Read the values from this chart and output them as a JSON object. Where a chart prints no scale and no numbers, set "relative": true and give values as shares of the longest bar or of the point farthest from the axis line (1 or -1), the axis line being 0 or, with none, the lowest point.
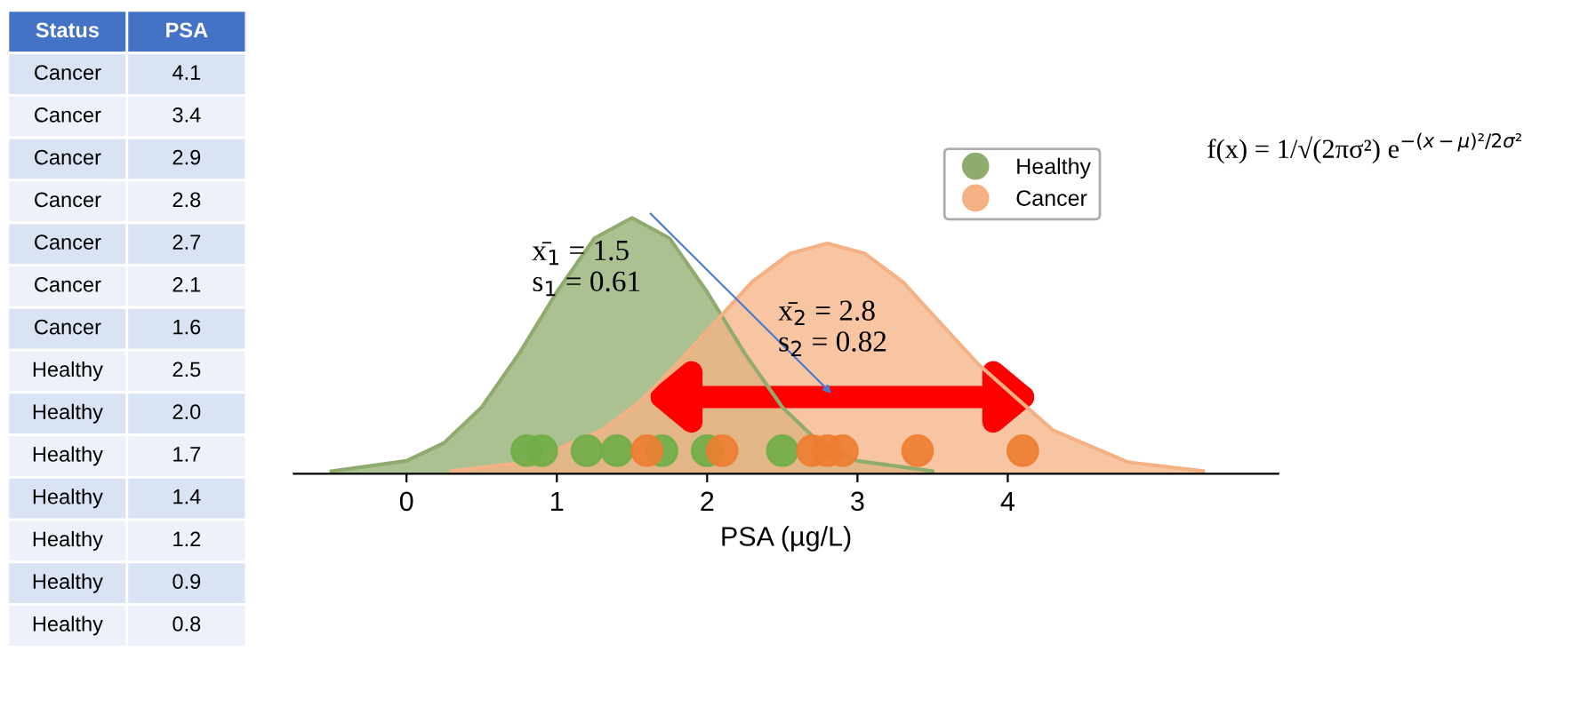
{
  "chart_data": [
    {
      "type": "other",
      "annotations": [
        "Status",
        "PSA",
        "Cancer",
        "4.1",
        "Cancer",
        "3.4",
        "Cancer",
        "2.9",
        "Cancer",
        "2.8",
        "Cancer",
        "2.7",
        "Cancer",
        "2.1",
        "Cancer",
        "1.6",
        "Healthy",
        "2.5",
        "Healthy",
        "2.0",
        "Healthy",
        "1.7",
        "Healthy",
        "1.4",
        "Healthy",
        "1.2",
        "Healthy",
        "0.9",
        "Healthy",
        "0.8"
      ]
    },
    {
      "type": "area",
      "relative": true,
      "xlabel": "PSA (µg/L)",
      "xlim": [
        -0.75,
        5.8
      ],
      "xticks": [
        0,
        1,
        2,
        3,
        4
      ],
      "legend": "top right",
      "grid": false,
      "annotations": [
        "x̄$_{1}$ = 1.5\ns$_{1}$ = 0.61",
        "x̄$_{2}$ = 2.8\ns$_{2}$ = 0.82",
        "f(x) = 1/√(2πσ²) e$^{−(x−μ)²/2σ²}$"
      ],
      "series": [
        {
          "name": "Healthy",
          "color": "#8fac6e",
          "x": [
            -0.5,
            0,
            0.25,
            0.5,
            0.75,
            1,
            1.25,
            1.5,
            1.75,
            2,
            2.25,
            2.5,
            2.75,
            3,
            3.5
          ],
          "values": [
            0.01,
            0.05,
            0.12,
            0.26,
            0.47,
            0.71,
            0.92,
            1,
            0.92,
            0.71,
            0.47,
            0.26,
            0.12,
            0.05,
            0.01
          ]
        },
        {
          "name": "Cancer",
          "color": "#f4b183",
          "x": [
            0.3,
            0.8,
            1.3,
            1.55,
            1.8,
            2.05,
            2.3,
            2.55,
            2.8,
            3.05,
            3.3,
            3.55,
            3.8,
            4.3,
            4.8,
            5.3
          ],
          "values": [
            0.01,
            0.045,
            0.17,
            0.28,
            0.43,
            0.59,
            0.75,
            0.86,
            0.9,
            0.86,
            0.75,
            0.59,
            0.43,
            0.17,
            0.045,
            0.01
          ]
        },
        {
          "type": "scatter",
          "color": "#70ad47",
          "x": [
            0.8,
            0.9,
            1.2,
            1.4,
            1.7,
            2.0,
            2.5
          ],
          "values": [
            0.09,
            0.09,
            0.09,
            0.09,
            0.09,
            0.09,
            0.09
          ]
        },
        {
          "type": "scatter",
          "color": "#ed7d31",
          "x": [
            1.6,
            2.1,
            2.7,
            2.8,
            2.9,
            3.4,
            4.1
          ],
          "values": [
            0.09,
            0.09,
            0.09,
            0.09,
            0.09,
            0.09,
            0.09
          ]
        }
      ]
    }
  ]
}
